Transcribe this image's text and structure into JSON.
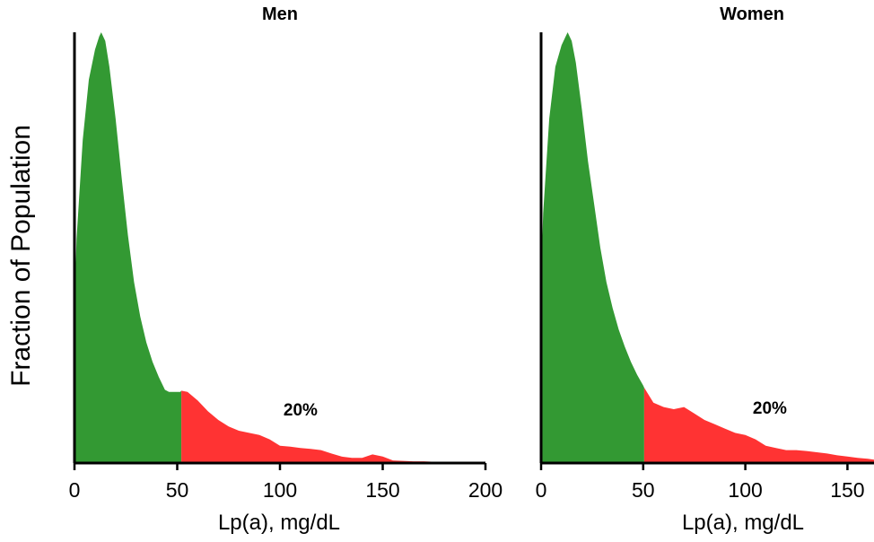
{
  "figure": {
    "ylabel": "Fraction of Population"
  },
  "chart_data": [
    {
      "type": "area",
      "title": "Men",
      "xlabel": "Lp(a), mg/dL",
      "ylabel": "Fraction of Population",
      "xlim": [
        0,
        200
      ],
      "xticks": [
        "0",
        "50",
        "100",
        "150",
        "200"
      ],
      "xtick_values": [
        0,
        50,
        100,
        150,
        200
      ],
      "ylim": [
        0,
        1
      ],
      "threshold": 52,
      "annotation": {
        "text": "20%",
        "x": 110,
        "y": 0.11
      },
      "colors": {
        "below": "#339933",
        "above": "#ff3333"
      },
      "series": [
        {
          "x": [
            0,
            1,
            4,
            7,
            10,
            12,
            13,
            15,
            17,
            20,
            23,
            26,
            29,
            32,
            35,
            38,
            41,
            44,
            46,
            50,
            51.5,
            52,
            55,
            60,
            65,
            70,
            75,
            80,
            85,
            90,
            95,
            100,
            105,
            110,
            115,
            120,
            125,
            130,
            135,
            140,
            145,
            150,
            155,
            160,
            165,
            170,
            175,
            180,
            185
          ],
          "y": [
            0.36,
            0.52,
            0.75,
            0.89,
            0.96,
            0.99,
            1.0,
            0.98,
            0.92,
            0.8,
            0.66,
            0.53,
            0.42,
            0.34,
            0.28,
            0.235,
            0.2,
            0.17,
            0.165,
            0.165,
            0.165,
            0.168,
            0.165,
            0.145,
            0.12,
            0.1,
            0.085,
            0.075,
            0.07,
            0.065,
            0.055,
            0.04,
            0.038,
            0.035,
            0.033,
            0.03,
            0.022,
            0.015,
            0.012,
            0.012,
            0.02,
            0.015,
            0.006,
            0.005,
            0.004,
            0.004,
            0.003,
            0.003,
            0.0
          ]
        }
      ]
    },
    {
      "type": "area",
      "title": "Women",
      "xlabel": "Lp(a), mg/dL",
      "ylabel": "Fraction of Population",
      "xlim": [
        0,
        163
      ],
      "xticks": [
        "0",
        "50",
        "100",
        "150"
      ],
      "xtick_values": [
        0,
        50,
        100,
        150
      ],
      "ylim": [
        0,
        1
      ],
      "threshold": 50.5,
      "annotation": {
        "text": "20%",
        "x": 112,
        "y": 0.115
      },
      "colors": {
        "below": "#339933",
        "above": "#ff3333"
      },
      "series": [
        {
          "x": [
            0,
            1,
            4,
            7,
            10,
            12,
            13,
            15,
            17,
            20,
            23,
            26,
            29,
            32,
            35,
            38,
            41,
            44,
            47,
            50,
            50.5,
            55,
            60,
            65,
            70,
            75,
            80,
            85,
            90,
            95,
            100,
            105,
            110,
            115,
            120,
            125,
            130,
            135,
            140,
            145,
            150,
            155,
            160,
            163
          ],
          "y": [
            0.43,
            0.58,
            0.8,
            0.92,
            0.97,
            0.99,
            1.0,
            0.98,
            0.93,
            0.82,
            0.7,
            0.6,
            0.5,
            0.42,
            0.36,
            0.31,
            0.27,
            0.235,
            0.205,
            0.18,
            0.175,
            0.14,
            0.13,
            0.125,
            0.13,
            0.115,
            0.1,
            0.09,
            0.08,
            0.07,
            0.065,
            0.055,
            0.04,
            0.035,
            0.03,
            0.03,
            0.028,
            0.025,
            0.022,
            0.018,
            0.015,
            0.012,
            0.01,
            0.008
          ]
        }
      ]
    }
  ]
}
